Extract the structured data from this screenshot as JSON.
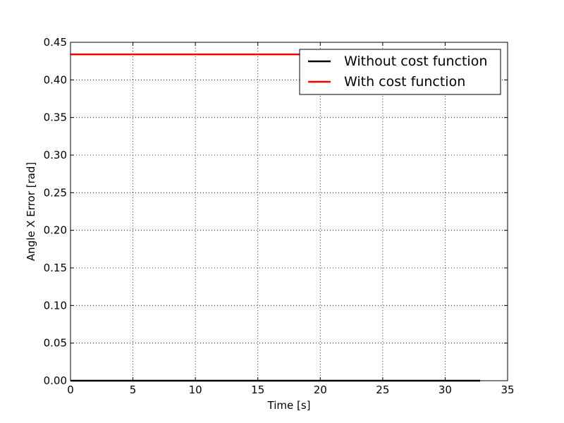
{
  "chart_data": {
    "type": "line",
    "title": "",
    "xlabel": "Time [s]",
    "ylabel": "Angle X Error [rad]",
    "xlim": [
      0,
      35
    ],
    "ylim": [
      0,
      0.45
    ],
    "x_ticks": [
      0,
      5,
      10,
      15,
      20,
      25,
      30,
      35
    ],
    "y_ticks": [
      0,
      0.05,
      0.1,
      0.15,
      0.2,
      0.25,
      0.3,
      0.35,
      0.4,
      0.45
    ],
    "x_tick_labels": [
      "0",
      "5",
      "10",
      "15",
      "20",
      "25",
      "30",
      "35"
    ],
    "y_tick_labels": [
      "0.00",
      "0.05",
      "0.10",
      "0.15",
      "0.20",
      "0.25",
      "0.30",
      "0.35",
      "0.40",
      "0.45"
    ],
    "grid": true,
    "legend_position": "top-right",
    "series": [
      {
        "name": "Without cost function",
        "color": "#000000",
        "x": [
          0,
          32.8
        ],
        "y": [
          0.0,
          0.0
        ]
      },
      {
        "name": "With cost function",
        "color": "#ff0000",
        "x": [
          0,
          32.8
        ],
        "y": [
          0.434,
          0.434
        ]
      }
    ]
  }
}
